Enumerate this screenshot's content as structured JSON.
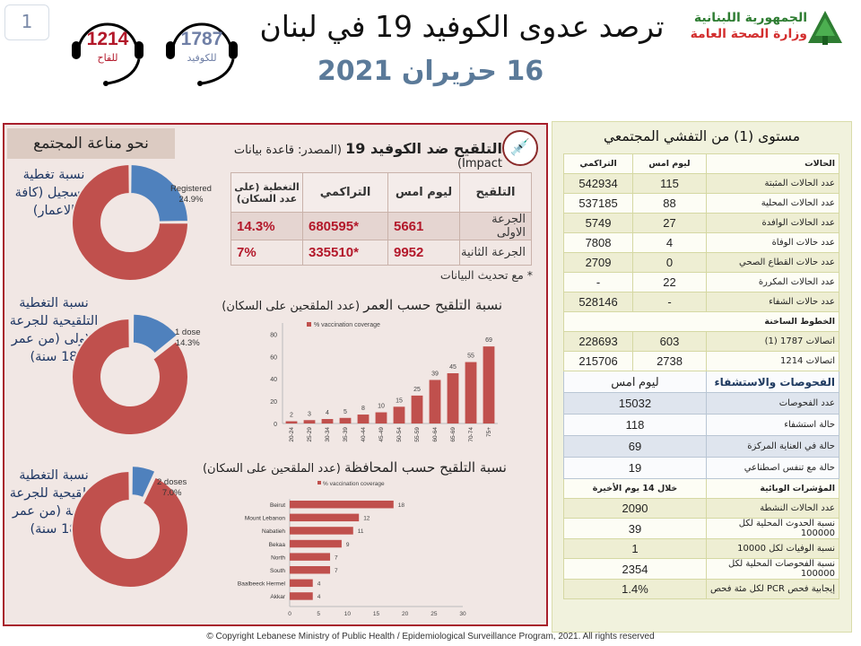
{
  "header": {
    "page_number": "1",
    "hotline_covid": {
      "number": "1787",
      "label": "للكوفيد"
    },
    "hotline_vaccine": {
      "number": "1214",
      "label": "للقاح"
    },
    "title": "ترصد عدوى الكوفيد 19 في لبنان",
    "date": "16 حزيران 2021",
    "logo_line1": "الجمهورية اللبنانية",
    "logo_line2": "وزارة الصحة العامة"
  },
  "immunity": {
    "heading": "نحو مناعة المجتمع",
    "donuts": [
      {
        "label": "نسبة تغطية التسجيل (كافة الاعمار)",
        "slice_label": "Registered",
        "percent_text": "24.9%",
        "value": 24.9
      },
      {
        "label": "نسبة التغطية التلقيحية للجرعة الاولى (من عمر 18 سنة)",
        "slice_label": "1 dose",
        "percent_text": "14.3%",
        "value": 14.3
      },
      {
        "label": "نسبة التغطية التلقيحية للجرعة الثانية (من عمر 18 سنة)",
        "slice_label": "2 doses",
        "percent_text": "7.0%",
        "value": 7.0
      }
    ],
    "colors": {
      "covered": "#4f81bd",
      "remaining": "#c0504d"
    }
  },
  "vaccination": {
    "title_bold": "التلقيح ضد الكوفيد 19",
    "title_source": "(المصدر: قاعدة بيانات Impact)",
    "headers": [
      "التلقيح",
      "ليوم امس",
      "التراكمي",
      "التغطية (على عدد السكان)"
    ],
    "rows": [
      {
        "dose": "الجرعة الاولى",
        "yesterday": "5661",
        "cumulative": "*680595",
        "coverage": "14.3%"
      },
      {
        "dose": "الجرعة الثانية",
        "yesterday": "9952",
        "cumulative": "*335510",
        "coverage": "7%"
      }
    ],
    "note": "* مع تحديث البيانات"
  },
  "chart_data": [
    {
      "type": "bar",
      "title": "نسبة التلقيح حسب العمر",
      "subtitle": "(عدد الملقحين على السكان)",
      "legend": "% vaccination coverage",
      "categories": [
        "20-24",
        "25-29",
        "30-34",
        "35-39",
        "40-44",
        "45-49",
        "50-54",
        "55-59",
        "60-64",
        "65-69",
        "70-74",
        "75+"
      ],
      "values": [
        2,
        3,
        4,
        5,
        8,
        10,
        15,
        25,
        39,
        45,
        55,
        69
      ],
      "ylim": [
        0,
        90
      ],
      "yticks": [
        0,
        20,
        40,
        60,
        80
      ],
      "color": "#c0504d",
      "grid": false,
      "legend_position": "top-left"
    },
    {
      "type": "bar",
      "orientation": "horizontal",
      "title": "نسبة التلقيح حسب المحافظة",
      "subtitle": "(عدد الملقحين على السكان)",
      "legend": "% vaccination coverage",
      "categories": [
        "Beirut",
        "Mount Lebanon",
        "Nabatieh",
        "Bekaa",
        "North",
        "South",
        "Baalbeeck Hermel",
        "Akkar"
      ],
      "values": [
        18,
        12,
        11,
        9,
        7,
        7,
        4,
        4
      ],
      "xlim": [
        0,
        30
      ],
      "xticks": [
        0,
        5,
        10,
        15,
        20,
        25,
        30
      ],
      "color": "#c0504d",
      "grid": false,
      "legend_position": "top"
    }
  ],
  "community": {
    "title": "مستوى (1) من التفشي المجتمعي",
    "cases_header": [
      "الحالات",
      "ليوم امس",
      "التراكمي"
    ],
    "cases": [
      [
        "عدد الحالات المثبتة",
        "115",
        "542934"
      ],
      [
        "عدد الحالات المحلية",
        "88",
        "537185"
      ],
      [
        "عدد الحالات الوافدة",
        "27",
        "5749"
      ],
      [
        "عدد حالات الوفاة",
        "4",
        "7808"
      ],
      [
        "عدد حالات القطاع الصحي",
        "0",
        "2709"
      ],
      [
        "عدد الحالات المكررة",
        "22",
        "-"
      ],
      [
        "عدد حالات الشفاء",
        "-",
        "528146"
      ]
    ],
    "hotlines_header": "الخطوط الساخنة",
    "hotlines": [
      [
        "اتصالات 1787 (1)",
        "603",
        "228693"
      ],
      [
        "اتصالات 1214",
        "2738",
        "215706"
      ]
    ],
    "testing_header": [
      "الفحوصات والاستشفاء",
      "ليوم امس"
    ],
    "testing": [
      [
        "عدد الفحوصات",
        "15032"
      ],
      [
        "حالة استشفاء",
        "118"
      ],
      [
        "حالة في العناية المركزة",
        "69"
      ],
      [
        "حالة مع تنفس اصطناعي",
        "19"
      ]
    ],
    "epi_header": [
      "المؤشرات الوبائية",
      "خلال 14 يوم الأخيرة"
    ],
    "epi": [
      [
        "عدد الحالات النشطة",
        "2090"
      ],
      [
        "نسبة الحدوث المحلية لكل 100000",
        "39"
      ],
      [
        "نسبة الوفيات لكل 10000",
        "1"
      ],
      [
        "نسبة الفحوصات المحلية لكل 100000",
        "2354"
      ],
      [
        "إيجابية فحص PCR لكل مئة فحص",
        "1.4%"
      ]
    ]
  },
  "footer": "© Copyright Lebanese Ministry of Public Health / Epidemiological Surveillance Program, 2021. All rights reserved"
}
